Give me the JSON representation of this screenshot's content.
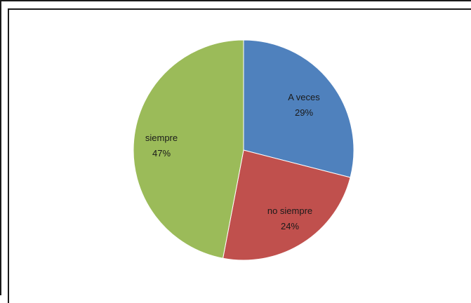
{
  "chart_data": {
    "type": "pie",
    "title": "",
    "slices": [
      {
        "label": "A veces",
        "percent_label": "29%",
        "value": 29,
        "color": "#4f81bd"
      },
      {
        "label": "no siempre",
        "percent_label": "24%",
        "value": 24,
        "color": "#c0504d"
      },
      {
        "label": "siempre",
        "percent_label": "47%",
        "value": 47,
        "color": "#9bbb59"
      }
    ],
    "start_angle_deg": 0,
    "direction": "clockwise",
    "legend": "none",
    "data_labels": "inside"
  }
}
